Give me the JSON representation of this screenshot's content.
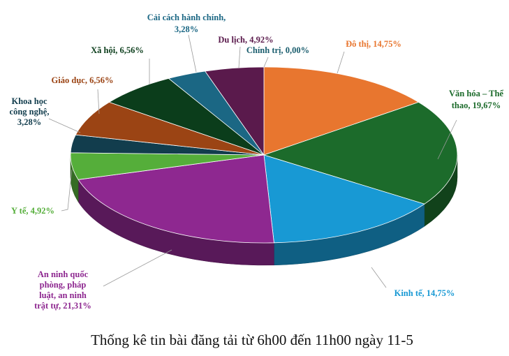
{
  "chart_data": {
    "type": "pie",
    "title": "Thống kê tin bài đăng tải từ 6h00 đến 11h00 ngày 11-5",
    "slices": [
      {
        "label": "Chính trị, 0,00%",
        "name": "Chính trị",
        "value": 0.0,
        "color": "#2f7a33"
      },
      {
        "label": "Đô thị, 14,75%",
        "name": "Đô thị",
        "value": 14.75,
        "color": "#e8762f"
      },
      {
        "label": "Văn hóa – Thể thao, 19,67%",
        "name": "Văn hóa – Thể thao",
        "value": 19.67,
        "color": "#1c6b2b"
      },
      {
        "label": "Kinh tế, 14,75%",
        "name": "Kinh tế",
        "value": 14.75,
        "color": "#1899d4"
      },
      {
        "label": "An ninh quốc phòng, pháp luật, an ninh trật tự, 21,31%",
        "name": "An ninh quốc phòng, pháp luật, an ninh trật tự",
        "value": 21.31,
        "color": "#8e2890"
      },
      {
        "label": "Y tế, 4,92%",
        "name": "Y tế",
        "value": 4.92,
        "color": "#55ae3a"
      },
      {
        "label": "Khoa học công nghệ, 3,28%",
        "name": "Khoa học công nghệ",
        "value": 3.28,
        "color": "#123d4d"
      },
      {
        "label": "Giáo dục, 6,56%",
        "name": "Giáo dục",
        "value": 6.56,
        "color": "#9b4414"
      },
      {
        "label": "Xã hội, 6,56%",
        "name": "Xã hội",
        "value": 6.56,
        "color": "#0b3d1b"
      },
      {
        "label": "Cải cách hành chính, 3,28%",
        "name": "Cải cách hành chính",
        "value": 3.28,
        "color": "#1b6784"
      },
      {
        "label": "Du lịch, 4,92%",
        "name": "Du lịch",
        "value": 4.92,
        "color": "#5a1a4c"
      }
    ]
  }
}
